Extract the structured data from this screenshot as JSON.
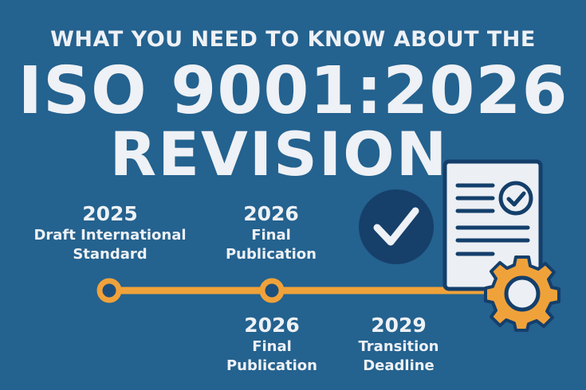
{
  "title": {
    "line1": "WHAT YOU NEED TO KNOW ABOUT THE",
    "line2": "ISO 9001:2026",
    "line3": "REVISION"
  },
  "timeline": {
    "top": [
      {
        "year": "2025",
        "line1": "Draft International",
        "line2": "Standard"
      },
      {
        "year": "2026",
        "line1": "Final",
        "line2": "Publication"
      }
    ],
    "bottom": [
      {
        "year": "2026",
        "line1": "Final",
        "line2": "Publication"
      },
      {
        "year": "2029",
        "line1": "Transition",
        "line2": "Deadline"
      }
    ]
  },
  "icons": [
    "check-circle-icon",
    "document-check-icon",
    "gear-icon"
  ],
  "colors": {
    "background": "#24628f",
    "accent": "#f0a23a",
    "navy": "#143f6b",
    "text": "#eef1f5"
  }
}
